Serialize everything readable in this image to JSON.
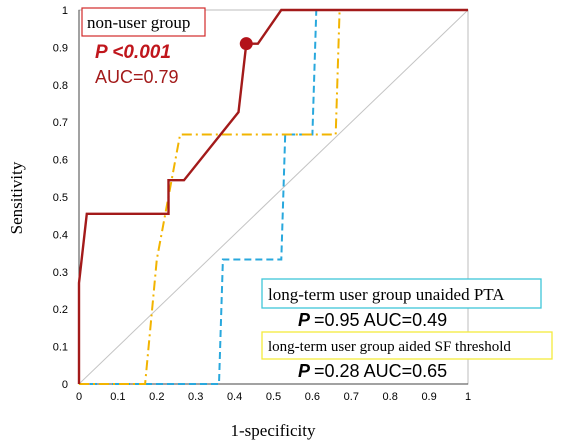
{
  "chart_data": {
    "type": "line",
    "title": "",
    "xlabel": "1-specificity",
    "ylabel": "Sensitivity",
    "xlim": [
      0,
      1
    ],
    "ylim": [
      0,
      1
    ],
    "xticks": [
      "0",
      "0.1",
      "0.2",
      "0.3",
      "0.4",
      "0.5",
      "0.6",
      "0.7",
      "0.8",
      "0.9",
      "1"
    ],
    "yticks": [
      "0",
      "0.1",
      "0.2",
      "0.3",
      "0.4",
      "0.5",
      "0.6",
      "0.7",
      "0.8",
      "0.9",
      "1"
    ],
    "grid": false,
    "reference_line": true,
    "series": [
      {
        "name": "non-user group",
        "color": "#a31a1a",
        "style": "solid",
        "x": [
          0,
          0,
          0.02,
          0.23,
          0.23,
          0.24,
          0.27,
          0.41,
          0.43,
          0.44,
          0.46,
          0.52,
          0.53,
          1.0
        ],
        "y": [
          0,
          0.27,
          0.455,
          0.455,
          0.545,
          0.545,
          0.545,
          0.727,
          0.91,
          0.91,
          0.91,
          1.0,
          1.0,
          1.0
        ],
        "optimal_point": [
          0.43,
          0.91
        ]
      },
      {
        "name": "long-term user group unaided PTA",
        "color": "#29a8dd",
        "style": "dashed",
        "x": [
          0,
          0.36,
          0.37,
          0.39,
          0.52,
          0.53,
          0.54,
          0.59,
          0.6,
          0.61,
          0.62,
          0.63,
          1.0
        ],
        "y": [
          0,
          0,
          0.333,
          0.333,
          0.333,
          0.667,
          0.667,
          0.667,
          0.667,
          1.0,
          1.0,
          1.0,
          1.0
        ]
      },
      {
        "name": "long-term user group aided SF threshold",
        "color": "#f2b400",
        "style": "dash-dot",
        "x": [
          0,
          0.17,
          0.2,
          0.26,
          0.27,
          0.58,
          0.66,
          0.67,
          0.68,
          1.0
        ],
        "y": [
          0,
          0,
          0.333,
          0.667,
          0.667,
          0.667,
          0.667,
          1.0,
          1.0,
          1.0
        ]
      }
    ],
    "annotations": {
      "nonuser": {
        "group": "non-user group",
        "p": "P <0.001",
        "auc": "AUC=0.79",
        "color": "#c0161c"
      },
      "unaided": {
        "group": "long-term user group unaided PTA",
        "stats": "=0.95 AUC=0.49",
        "p_letter": "P",
        "border": "#3fc7d8"
      },
      "aided": {
        "group": "long-term user group aided SF threshold",
        "stats": "=0.28 AUC=0.65",
        "p_letter": "P",
        "border": "#f5ea3c"
      }
    }
  }
}
